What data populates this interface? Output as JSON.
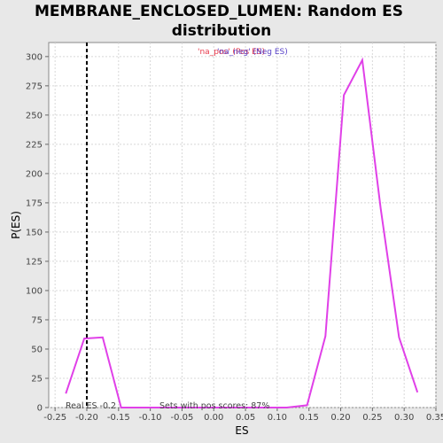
{
  "chart_data": {
    "type": "line",
    "title_line1": "MEMBRANE_ENCLOSED_LUMEN: Random ES",
    "title_line2": "distribution",
    "xlabel": "ES",
    "ylabel": "P(ES)",
    "xlim": [
      -0.26,
      0.35
    ],
    "ylim": [
      0,
      312
    ],
    "x_ticks": [
      -0.25,
      -0.2,
      -0.15,
      -0.1,
      -0.05,
      0.0,
      0.05,
      0.1,
      0.15,
      0.2,
      0.25,
      0.3,
      0.35
    ],
    "x_tick_labels": [
      "-0.25",
      "-0.20",
      "-0.15",
      "-0.10",
      "-0.05",
      "0.00",
      "0.05",
      "0.10",
      "0.15",
      "0.20",
      "0.25",
      "0.30",
      "0.35"
    ],
    "y_ticks": [
      0,
      25,
      50,
      75,
      100,
      125,
      150,
      175,
      200,
      225,
      250,
      275,
      300
    ],
    "grid": true,
    "legend": {
      "position": "top",
      "pos_label": "'na_pos' (Pos ES)",
      "neg_label": "'na_neg' (Neg ES)",
      "pos_color": "#e8384a",
      "neg_color": "#5a44c8"
    },
    "series": [
      {
        "color": "#e040e8",
        "x": [
          -0.233,
          -0.204,
          -0.175,
          -0.146,
          -0.117,
          -0.088,
          -0.059,
          -0.03,
          -0.001,
          0.028,
          0.057,
          0.086,
          0.115,
          0.147,
          0.176,
          0.205,
          0.234,
          0.263,
          0.292,
          0.321
        ],
        "y": [
          12,
          59,
          60,
          0,
          0,
          0,
          0,
          0,
          0,
          0,
          0,
          0,
          0,
          2,
          61,
          267,
          297,
          170,
          60,
          13
        ]
      }
    ],
    "real_es_line": {
      "x": -0.2,
      "color": "#000000"
    },
    "annotations": {
      "real_es": "Real ES -0.2",
      "sets_pos": "Sets with pos scores: 87%"
    }
  }
}
